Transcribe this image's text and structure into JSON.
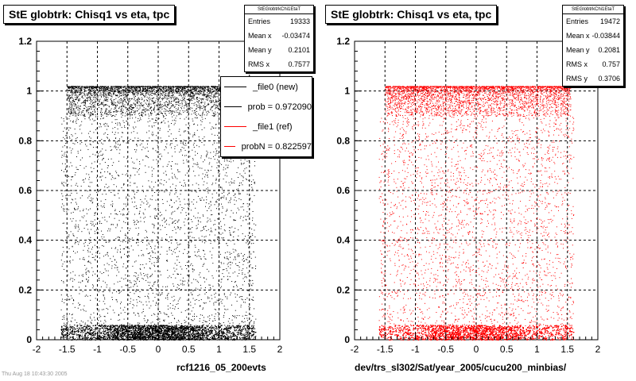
{
  "plots": [
    {
      "title": "StE globtrk: Chisq1 vs eta, tpc",
      "stats": {
        "header": "StEGlobtrkChi1EtaT",
        "rows": [
          {
            "label": "Entries",
            "value": "19333"
          },
          {
            "label": "Mean x",
            "value": "-0.03474"
          },
          {
            "label": "Mean y",
            "value": "0.2101"
          },
          {
            "label": "RMS x",
            "value": "0.7577"
          }
        ]
      },
      "legend": [
        {
          "label": "_file0 (new)",
          "color": "#000000"
        },
        {
          "label": "prob = 0.972090",
          "color": "#000000"
        },
        {
          "label": "_file1 (ref)",
          "color": "#ff0000"
        },
        {
          "label": "probN = 0.822597",
          "color": "#ff0000"
        }
      ],
      "xlabel": "rcf1216_05_200evts",
      "marker_color": "#000000"
    },
    {
      "title": "StE globtrk: Chisq1 vs eta, tpc",
      "stats": {
        "header": "StEGlobtrkChi1EtaT",
        "rows": [
          {
            "label": "Entries",
            "value": "19472"
          },
          {
            "label": "Mean x",
            "value": "-0.03844"
          },
          {
            "label": "Mean y",
            "value": "0.2081"
          },
          {
            "label": "RMS x",
            "value": "0.757"
          },
          {
            "label": "RMS y",
            "value": "0.3706"
          }
        ]
      },
      "xlabel": "dev/trs_sl302/Sat/year_2005/cucu200_minbias/",
      "marker_color": "#ff0000"
    }
  ],
  "footer_text": "Thu Aug 18 10:43:30 2005",
  "chart_data": [
    {
      "type": "scatter",
      "title": "StE globtrk: Chisq1 vs eta, tpc",
      "xlabel": "rcf1216_05_200evts",
      "ylabel": "",
      "xlim": [
        -2,
        2
      ],
      "ylim": [
        0,
        1.2
      ],
      "xticks": [
        -2,
        -1.5,
        -1,
        -0.5,
        0,
        0.5,
        1,
        1.5,
        2
      ],
      "yticks": [
        0,
        0.2,
        0.4,
        0.6,
        0.8,
        1,
        1.2
      ],
      "grid": true,
      "series": [
        {
          "name": "_file0 (new)",
          "color": "#000000"
        }
      ],
      "density_bands": [
        {
          "x": [
            -1.6,
            1.6
          ],
          "y": [
            0.0,
            0.06
          ],
          "level": "very dense"
        },
        {
          "x": [
            -1.5,
            1.55
          ],
          "y": [
            0.9,
            1.02
          ],
          "level": "dense"
        },
        {
          "x": [
            -1.6,
            1.6
          ],
          "y": [
            0.06,
            0.9
          ],
          "level": "sparse"
        }
      ]
    },
    {
      "type": "scatter",
      "title": "StE globtrk: Chisq1 vs eta, tpc",
      "xlabel": "dev/trs_sl302/Sat/year_2005/cucu200_minbias/",
      "ylabel": "",
      "xlim": [
        -2,
        2
      ],
      "ylim": [
        0,
        1.2
      ],
      "xticks": [
        -2,
        -1.5,
        -1,
        -0.5,
        0,
        0.5,
        1,
        1.5,
        2
      ],
      "yticks": [
        0,
        0.2,
        0.4,
        0.6,
        0.8,
        1,
        1.2
      ],
      "grid": true,
      "series": [
        {
          "name": "_file1 (ref)",
          "color": "#ff0000"
        }
      ],
      "density_bands": [
        {
          "x": [
            -1.6,
            1.6
          ],
          "y": [
            0.0,
            0.06
          ],
          "level": "very dense"
        },
        {
          "x": [
            -1.5,
            1.55
          ],
          "y": [
            0.9,
            1.02
          ],
          "level": "dense"
        },
        {
          "x": [
            -1.6,
            1.6
          ],
          "y": [
            0.06,
            0.9
          ],
          "level": "sparse"
        }
      ]
    }
  ]
}
